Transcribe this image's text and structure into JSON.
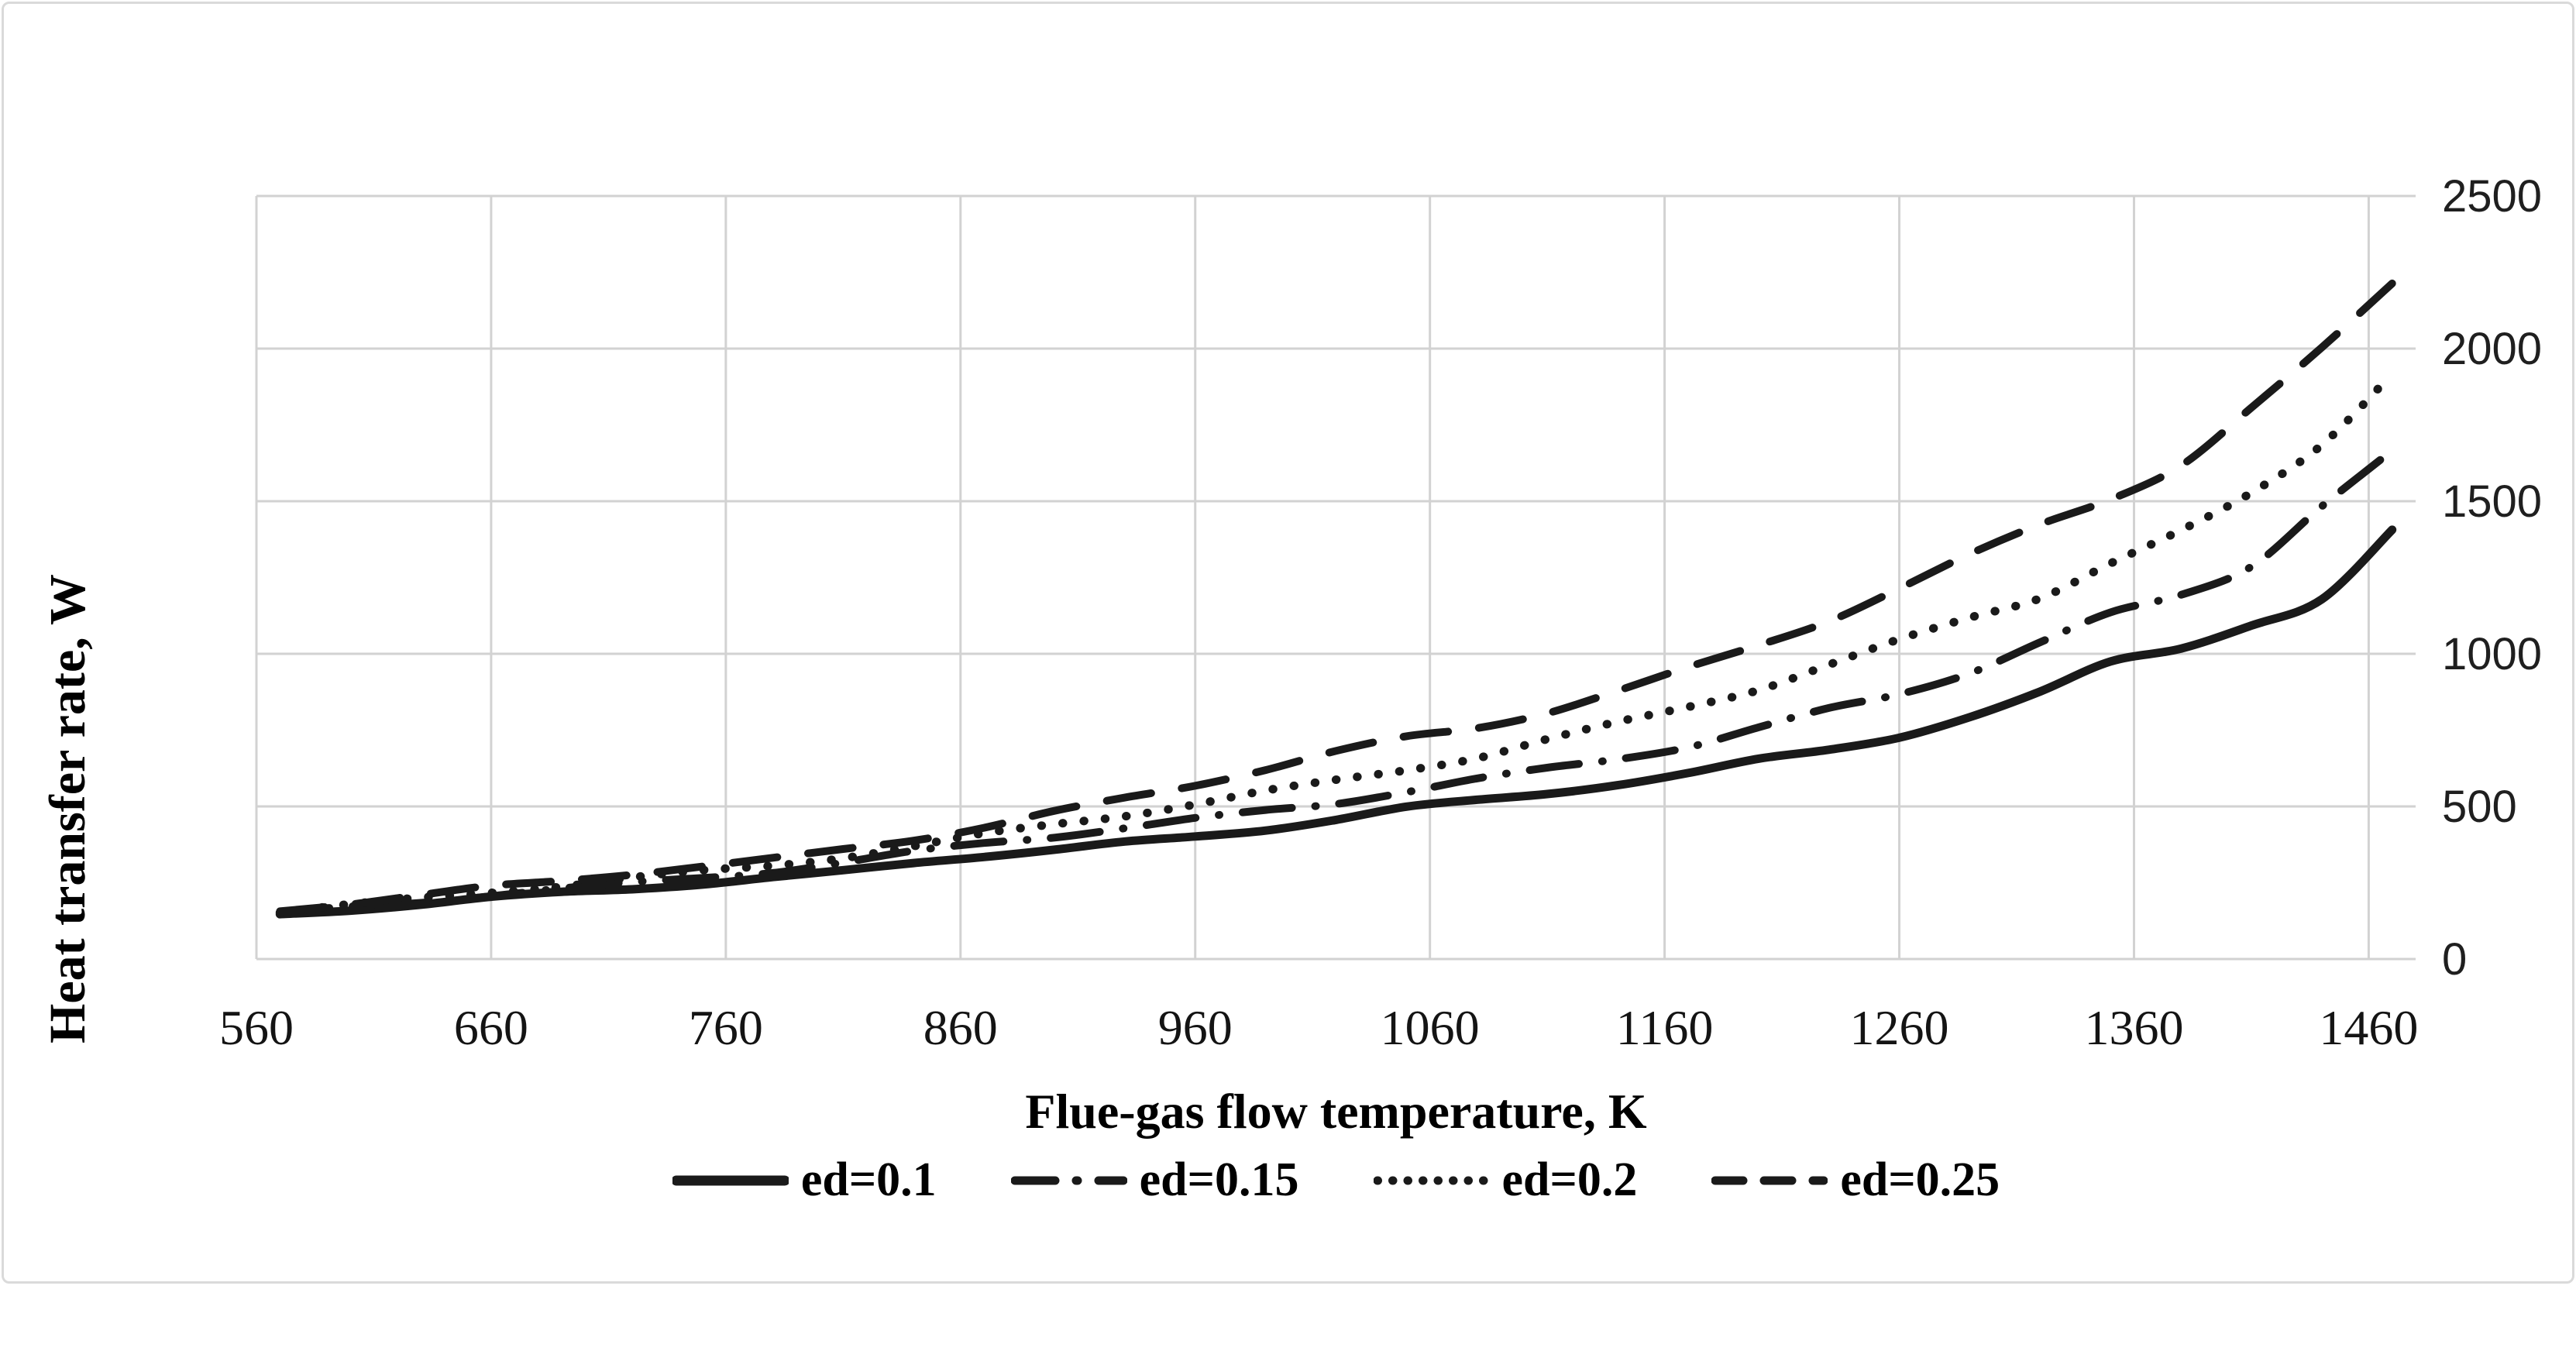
{
  "figure": {
    "background": "#ffffff",
    "border_color": "#dadada"
  },
  "chart_data": {
    "type": "line",
    "title": "",
    "xlabel": "Flue-gas flow temperature, K",
    "ylabel": "Heat transfer rate, W",
    "xlim": [
      560,
      1480
    ],
    "ylim": [
      0,
      2500
    ],
    "x_ticks": [
      560,
      660,
      760,
      860,
      960,
      1060,
      1160,
      1260,
      1360,
      1460
    ],
    "y_ticks": [
      0,
      500,
      1000,
      1500,
      2000,
      2500
    ],
    "y_tick_side": "right",
    "grid": true,
    "grid_color": "#d2d2d2",
    "line_color": "#1a1a1a",
    "legend_position": "bottom",
    "x": [
      570,
      600,
      630,
      660,
      690,
      720,
      750,
      780,
      810,
      840,
      870,
      900,
      930,
      960,
      990,
      1020,
      1050,
      1080,
      1110,
      1140,
      1170,
      1200,
      1230,
      1260,
      1290,
      1320,
      1350,
      1380,
      1410,
      1440,
      1470
    ],
    "series": [
      {
        "name": "ed=0.1",
        "style": "solid",
        "values": [
          145,
          163,
          181,
          200,
          216,
          232,
          249,
          266,
          285,
          316,
          341,
          358,
          378,
          400,
          428,
          459,
          492,
          517,
          547,
          576,
          604,
          648,
          690,
          735,
          790,
          865,
          975,
          1030,
          1095,
          1165,
          1400
        ]
      },
      {
        "name": "ed=0.15",
        "style": "dash-dot",
        "values": [
          150,
          169,
          188,
          210,
          228,
          247,
          268,
          288,
          315,
          348,
          380,
          405,
          430,
          455,
          485,
          515,
          552,
          585,
          620,
          660,
          702,
          755,
          812,
          870,
          948,
          1038,
          1122,
          1190,
          1300,
          1490,
          1650
        ]
      },
      {
        "name": "ed=0.2",
        "style": "dotted",
        "values": [
          155,
          176,
          197,
          220,
          242,
          265,
          285,
          307,
          337,
          370,
          405,
          440,
          475,
          510,
          545,
          582,
          625,
          665,
          715,
          768,
          830,
          892,
          962,
          1035,
          1118,
          1196,
          1300,
          1390,
          1520,
          1700,
          1930
        ]
      },
      {
        "name": "ed=0.25",
        "style": "dashed",
        "values": [
          160,
          183,
          207,
          235,
          258,
          282,
          302,
          325,
          360,
          395,
          432,
          478,
          525,
          575,
          625,
          675,
          722,
          762,
          815,
          875,
          945,
          1030,
          1120,
          1215,
          1312,
          1420,
          1522,
          1625,
          1790,
          1990,
          2230
        ]
      }
    ]
  }
}
